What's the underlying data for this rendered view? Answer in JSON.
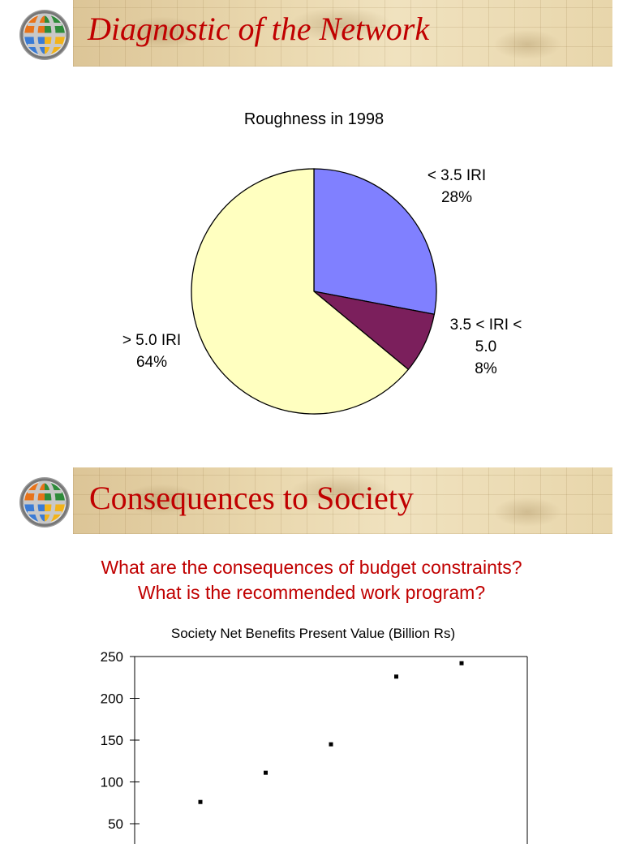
{
  "slide1": {
    "title": "Diagnostic of the Network"
  },
  "slide2": {
    "title": "Consequences to Society",
    "questions": [
      "What are the consequences of budget constraints?",
      "What is the recommended work program?"
    ]
  },
  "colors": {
    "title_red": "#c00000",
    "slice1": "#8080ff",
    "slice2": "#7b1f5c",
    "slice3": "#ffffc0"
  },
  "chart_data": [
    {
      "type": "pie",
      "title": "Roughness in 1998",
      "slices": [
        {
          "label_lines": [
            "< 3.5 IRI",
            "28%"
          ],
          "value": 28,
          "color": "#8080ff"
        },
        {
          "label_lines": [
            "3.5 < IRI <",
            "5.0",
            "8%"
          ],
          "value": 8,
          "color": "#7b1f5c"
        },
        {
          "label_lines": [
            "> 5.0 IRI",
            "64%"
          ],
          "value": 64,
          "color": "#ffffc0"
        }
      ]
    },
    {
      "type": "scatter",
      "title": "Society Net Benefits Present Value (Billion Rs)",
      "ylim": [
        0,
        250
      ],
      "yticks": [
        "250",
        "200",
        "150",
        "100",
        "50"
      ],
      "ytick_values": [
        250,
        200,
        150,
        100,
        50
      ],
      "x": [
        1,
        2,
        3,
        4,
        5
      ],
      "y": [
        76,
        111,
        145,
        226,
        242
      ]
    }
  ]
}
